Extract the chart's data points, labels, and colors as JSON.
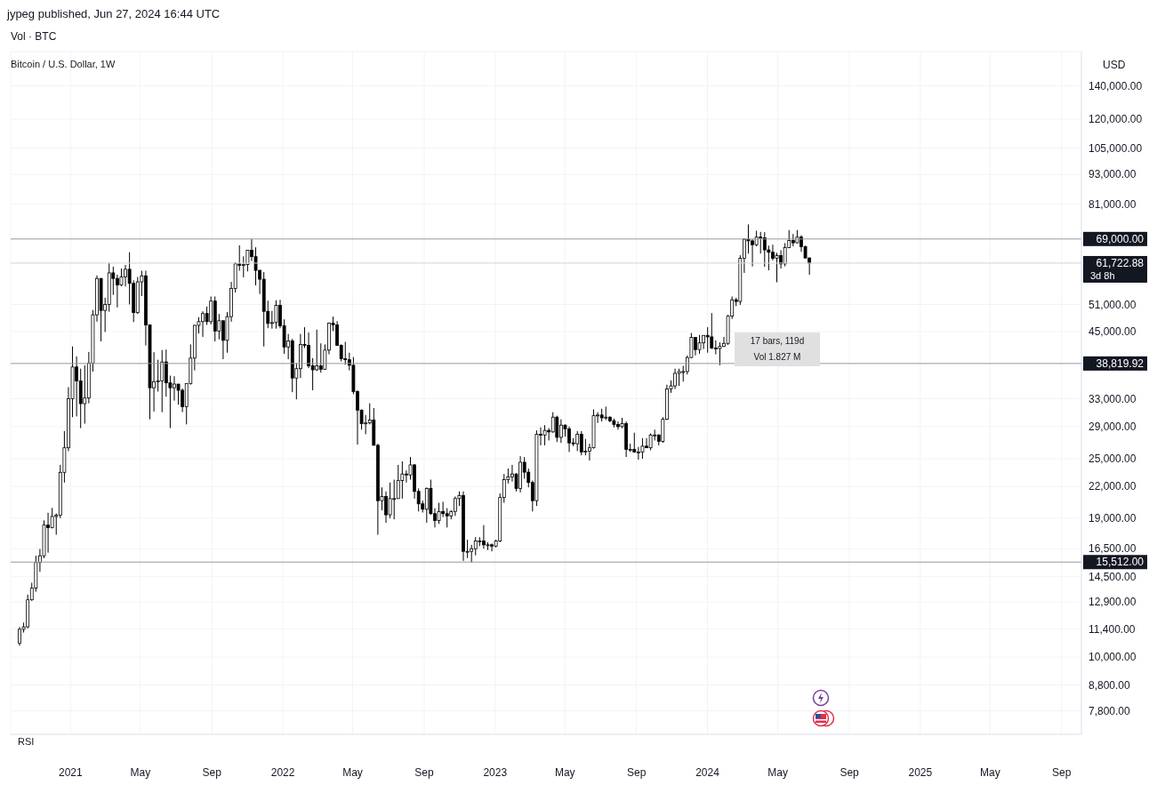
{
  "chart_data": {
    "type": "candlestick",
    "title": "Bitcoin / U.S. Dollar, 1W",
    "color": "#000000",
    "log": true,
    "grid": true,
    "annotations": [
      "jypeg published, Jun 27, 2024 16:44 UTC",
      "Vol · BTC",
      "USD",
      "RSI",
      "17 bars, 119d",
      "Vol 1.827 M",
      "3d 8h"
    ],
    "xlim": [
      "2020-09-20",
      "2025-10-05"
    ],
    "xticks": [
      {
        "value": "2021-01-01",
        "label": "2021"
      },
      {
        "value": "2021-05-01",
        "label": "May"
      },
      {
        "value": "2021-09-01",
        "label": "Sep"
      },
      {
        "value": "2022-01-01",
        "label": "2022"
      },
      {
        "value": "2022-05-01",
        "label": "May"
      },
      {
        "value": "2022-09-01",
        "label": "Sep"
      },
      {
        "value": "2023-01-01",
        "label": "2023"
      },
      {
        "value": "2023-05-01",
        "label": "May"
      },
      {
        "value": "2023-09-01",
        "label": "Sep"
      },
      {
        "value": "2024-01-01",
        "label": "2024"
      },
      {
        "value": "2024-05-01",
        "label": "May"
      },
      {
        "value": "2024-09-01",
        "label": "Sep"
      },
      {
        "value": "2025-01-01",
        "label": "2025"
      },
      {
        "value": "2025-05-01",
        "label": "May"
      },
      {
        "value": "2025-09-01",
        "label": "Sep"
      }
    ],
    "ylim": [
      7000,
      164000
    ],
    "yticks": [
      {
        "value": 7800,
        "label": "7,800.00"
      },
      {
        "value": 8800,
        "label": "8,800.00"
      },
      {
        "value": 10000,
        "label": "10,000.00"
      },
      {
        "value": 11400,
        "label": "11,400.00"
      },
      {
        "value": 12900,
        "label": "12,900.00"
      },
      {
        "value": 14500,
        "label": "14,500.00"
      },
      {
        "value": 16500,
        "label": "16,500.00"
      },
      {
        "value": 19000,
        "label": "19,000.00"
      },
      {
        "value": 22000,
        "label": "22,000.00"
      },
      {
        "value": 25000,
        "label": "25,000.00"
      },
      {
        "value": 29000,
        "label": "29,000.00"
      },
      {
        "value": 33000,
        "label": "33,000.00"
      },
      {
        "value": 45000,
        "label": "45,000.00"
      },
      {
        "value": 51000,
        "label": "51,000.00"
      },
      {
        "value": 81000,
        "label": "81,000.00"
      },
      {
        "value": 93000,
        "label": "93,000.00"
      },
      {
        "value": 105000,
        "label": "105,000.00"
      },
      {
        "value": 120000,
        "label": "120,000.00"
      },
      {
        "value": 140000,
        "label": "140,000.00"
      }
    ],
    "ref_lines": [
      {
        "axis": "y",
        "value": 69000,
        "label": "69,000.00",
        "color": "#9598a1"
      },
      {
        "axis": "y",
        "value": 61722.88,
        "label": "61,722.88",
        "color": "#d1d4dc"
      },
      {
        "axis": "y",
        "value": 38819.92,
        "label": "38,819.92",
        "color": "#9598a1"
      },
      {
        "axis": "y",
        "value": 15512,
        "label": "15,512.00",
        "color": "#9598a1"
      }
    ],
    "x": [
      "2020-10-05",
      "2020-10-12",
      "2020-10-19",
      "2020-10-26",
      "2020-11-02",
      "2020-11-09",
      "2020-11-16",
      "2020-11-23",
      "2020-11-30",
      "2020-12-07",
      "2020-12-14",
      "2020-12-21",
      "2020-12-28",
      "2021-01-04",
      "2021-01-11",
      "2021-01-18",
      "2021-01-25",
      "2021-02-01",
      "2021-02-08",
      "2021-02-15",
      "2021-02-22",
      "2021-03-01",
      "2021-03-08",
      "2021-03-15",
      "2021-03-22",
      "2021-03-29",
      "2021-04-05",
      "2021-04-12",
      "2021-04-19",
      "2021-04-26",
      "2021-05-03",
      "2021-05-10",
      "2021-05-17",
      "2021-05-24",
      "2021-05-31",
      "2021-06-07",
      "2021-06-14",
      "2021-06-21",
      "2021-06-28",
      "2021-07-05",
      "2021-07-12",
      "2021-07-19",
      "2021-07-26",
      "2021-08-02",
      "2021-08-09",
      "2021-08-16",
      "2021-08-23",
      "2021-08-30",
      "2021-09-06",
      "2021-09-13",
      "2021-09-20",
      "2021-09-27",
      "2021-10-04",
      "2021-10-11",
      "2021-10-18",
      "2021-10-25",
      "2021-11-01",
      "2021-11-08",
      "2021-11-15",
      "2021-11-22",
      "2021-11-29",
      "2021-12-06",
      "2021-12-13",
      "2021-12-20",
      "2021-12-27",
      "2022-01-03",
      "2022-01-10",
      "2022-01-17",
      "2022-01-24",
      "2022-01-31",
      "2022-02-07",
      "2022-02-14",
      "2022-02-21",
      "2022-02-28",
      "2022-03-07",
      "2022-03-14",
      "2022-03-21",
      "2022-03-28",
      "2022-04-04",
      "2022-04-11",
      "2022-04-18",
      "2022-04-25",
      "2022-05-02",
      "2022-05-09",
      "2022-05-16",
      "2022-05-23",
      "2022-05-30",
      "2022-06-06",
      "2022-06-13",
      "2022-06-20",
      "2022-06-27",
      "2022-07-04",
      "2022-07-11",
      "2022-07-18",
      "2022-07-25",
      "2022-08-01",
      "2022-08-08",
      "2022-08-15",
      "2022-08-22",
      "2022-08-29",
      "2022-09-05",
      "2022-09-12",
      "2022-09-19",
      "2022-09-26",
      "2022-10-03",
      "2022-10-10",
      "2022-10-17",
      "2022-10-24",
      "2022-10-31",
      "2022-11-07",
      "2022-11-14",
      "2022-11-21",
      "2022-11-28",
      "2022-12-05",
      "2022-12-12",
      "2022-12-19",
      "2022-12-26",
      "2023-01-02",
      "2023-01-09",
      "2023-01-16",
      "2023-01-23",
      "2023-01-30",
      "2023-02-06",
      "2023-02-13",
      "2023-02-20",
      "2023-02-27",
      "2023-03-06",
      "2023-03-13",
      "2023-03-20",
      "2023-03-27",
      "2023-04-03",
      "2023-04-10",
      "2023-04-17",
      "2023-04-24",
      "2023-05-01",
      "2023-05-08",
      "2023-05-15",
      "2023-05-22",
      "2023-05-29",
      "2023-06-05",
      "2023-06-12",
      "2023-06-19",
      "2023-06-26",
      "2023-07-03",
      "2023-07-10",
      "2023-07-17",
      "2023-07-24",
      "2023-07-31",
      "2023-08-07",
      "2023-08-14",
      "2023-08-21",
      "2023-08-28",
      "2023-09-04",
      "2023-09-11",
      "2023-09-18",
      "2023-09-25",
      "2023-10-02",
      "2023-10-09",
      "2023-10-16",
      "2023-10-23",
      "2023-10-30",
      "2023-11-06",
      "2023-11-13",
      "2023-11-20",
      "2023-11-27",
      "2023-12-04",
      "2023-12-11",
      "2023-12-18",
      "2023-12-25",
      "2024-01-01",
      "2024-01-08",
      "2024-01-15",
      "2024-01-22",
      "2024-01-29",
      "2024-02-05",
      "2024-02-12",
      "2024-02-19",
      "2024-02-26",
      "2024-03-04",
      "2024-03-11",
      "2024-03-18",
      "2024-03-25",
      "2024-04-01",
      "2024-04-08",
      "2024-04-15",
      "2024-04-22",
      "2024-04-29",
      "2024-05-06",
      "2024-05-13",
      "2024-05-20",
      "2024-05-27",
      "2024-06-03",
      "2024-06-10",
      "2024-06-17",
      "2024-06-24"
    ],
    "ohlc": [
      [
        10670,
        11490,
        10540,
        11370
      ],
      [
        11370,
        11730,
        11200,
        11500
      ],
      [
        11500,
        13350,
        11420,
        13030
      ],
      [
        13030,
        14100,
        12970,
        13750
      ],
      [
        13750,
        15970,
        13530,
        15480
      ],
      [
        15480,
        16480,
        14830,
        15970
      ],
      [
        15970,
        18800,
        15800,
        18400
      ],
      [
        18400,
        19480,
        16200,
        18190
      ],
      [
        18190,
        19920,
        18120,
        19150
      ],
      [
        19150,
        19420,
        17600,
        19270
      ],
      [
        19270,
        24300,
        19000,
        23480
      ],
      [
        23480,
        28400,
        22400,
        26300
      ],
      [
        26300,
        34800,
        25900,
        33000
      ],
      [
        33000,
        42000,
        30300,
        38200
      ],
      [
        38200,
        40100,
        30400,
        35800
      ],
      [
        35800,
        37900,
        28800,
        32250
      ],
      [
        32250,
        38500,
        29400,
        33100
      ],
      [
        33100,
        40950,
        32300,
        38900
      ],
      [
        38900,
        49700,
        37400,
        48600
      ],
      [
        48600,
        58300,
        47100,
        57500
      ],
      [
        57500,
        57600,
        43000,
        49600
      ],
      [
        49600,
        52600,
        44900,
        51000
      ],
      [
        51000,
        61800,
        49300,
        59000
      ],
      [
        59000,
        60700,
        53300,
        57500
      ],
      [
        57500,
        58500,
        50300,
        55800
      ],
      [
        55800,
        60200,
        55500,
        57900
      ],
      [
        57900,
        61200,
        55400,
        60000
      ],
      [
        60000,
        64900,
        51000,
        56200
      ],
      [
        56200,
        57000,
        47000,
        49100
      ],
      [
        49100,
        57900,
        48800,
        56600
      ],
      [
        56600,
        59600,
        53000,
        58200
      ],
      [
        58200,
        59600,
        42200,
        46400
      ],
      [
        46400,
        46500,
        30000,
        34700
      ],
      [
        34700,
        40900,
        31100,
        35700
      ],
      [
        35700,
        39500,
        34100,
        35800
      ],
      [
        35800,
        41300,
        31000,
        39100
      ],
      [
        39100,
        41400,
        33300,
        35500
      ],
      [
        35500,
        36700,
        28800,
        34700
      ],
      [
        34700,
        36600,
        32700,
        35300
      ],
      [
        35300,
        35300,
        32100,
        34300
      ],
      [
        34300,
        34600,
        31000,
        31800
      ],
      [
        31800,
        35400,
        29300,
        35400
      ],
      [
        35400,
        42400,
        35200,
        39800
      ],
      [
        39800,
        46400,
        37600,
        46300
      ],
      [
        46300,
        48100,
        44600,
        47100
      ],
      [
        47100,
        49400,
        43900,
        48900
      ],
      [
        48900,
        50500,
        46400,
        47100
      ],
      [
        47100,
        52900,
        46500,
        51800
      ],
      [
        51800,
        52900,
        43000,
        45100
      ],
      [
        45100,
        48800,
        43400,
        47300
      ],
      [
        47300,
        47300,
        39600,
        43200
      ],
      [
        43200,
        49200,
        40800,
        48200
      ],
      [
        48200,
        56600,
        47100,
        54900
      ],
      [
        54900,
        62000,
        53900,
        61500
      ],
      [
        61500,
        67000,
        59600,
        61100
      ],
      [
        61100,
        63700,
        57800,
        61300
      ],
      [
        61300,
        65600,
        59400,
        65500
      ],
      [
        65500,
        69000,
        62300,
        63600
      ],
      [
        63600,
        66400,
        55700,
        59700
      ],
      [
        59700,
        59800,
        53500,
        57300
      ],
      [
        57300,
        59200,
        42000,
        49400
      ],
      [
        49400,
        51900,
        45700,
        46700
      ],
      [
        46700,
        49500,
        45600,
        46900
      ],
      [
        46900,
        52000,
        45600,
        50800
      ],
      [
        50800,
        52100,
        45700,
        46200
      ],
      [
        46200,
        47600,
        40600,
        41900
      ],
      [
        41900,
        44500,
        39600,
        43100
      ],
      [
        43100,
        43500,
        34000,
        36300
      ],
      [
        36300,
        38900,
        32900,
        37900
      ],
      [
        37900,
        44500,
        36300,
        42400
      ],
      [
        42400,
        45900,
        41700,
        42200
      ],
      [
        42200,
        44800,
        38000,
        38400
      ],
      [
        38400,
        39800,
        34300,
        37700
      ],
      [
        37700,
        45400,
        37500,
        38400
      ],
      [
        38400,
        42600,
        37200,
        37800
      ],
      [
        37800,
        42400,
        37700,
        41300
      ],
      [
        41300,
        46900,
        40500,
        46800
      ],
      [
        46800,
        48200,
        45100,
        46400
      ],
      [
        46400,
        47200,
        42100,
        42200
      ],
      [
        42200,
        42400,
        39200,
        39700
      ],
      [
        39700,
        42900,
        38600,
        39500
      ],
      [
        39500,
        40800,
        37600,
        38500
      ],
      [
        38500,
        40000,
        33700,
        34100
      ],
      [
        34100,
        34300,
        26700,
        31300
      ],
      [
        31300,
        31400,
        28600,
        29400
      ],
      [
        29400,
        30600,
        28000,
        29500
      ],
      [
        29500,
        32300,
        29300,
        29900
      ],
      [
        29900,
        31600,
        26600,
        26600
      ],
      [
        26600,
        26800,
        17600,
        20600
      ],
      [
        20600,
        21900,
        19700,
        21000
      ],
      [
        21000,
        21500,
        18600,
        19300
      ],
      [
        19300,
        22400,
        19000,
        20800
      ],
      [
        20800,
        22700,
        18900,
        20800
      ],
      [
        20800,
        24300,
        20800,
        22600
      ],
      [
        22600,
        24700,
        20800,
        23300
      ],
      [
        23300,
        23700,
        22400,
        23200
      ],
      [
        23200,
        25200,
        22700,
        24300
      ],
      [
        24300,
        24400,
        20800,
        21500
      ],
      [
        21500,
        21800,
        19600,
        20300
      ],
      [
        20300,
        20600,
        19500,
        19800
      ],
      [
        19800,
        21900,
        18600,
        21800
      ],
      [
        21800,
        22700,
        19300,
        19400
      ],
      [
        19400,
        19900,
        18200,
        18800
      ],
      [
        18800,
        20400,
        18500,
        19600
      ],
      [
        19600,
        20500,
        19100,
        19400
      ],
      [
        19400,
        19900,
        18200,
        19200
      ],
      [
        19200,
        19700,
        18900,
        19600
      ],
      [
        19600,
        21000,
        19200,
        20800
      ],
      [
        20800,
        21500,
        20100,
        21100
      ],
      [
        21100,
        21500,
        15600,
        16300
      ],
      [
        16300,
        17200,
        15800,
        16300
      ],
      [
        16300,
        16800,
        15500,
        16500
      ],
      [
        16500,
        17400,
        16000,
        17100
      ],
      [
        17100,
        17400,
        16700,
        17100
      ],
      [
        17100,
        18400,
        16500,
        16800
      ],
      [
        16800,
        17000,
        16400,
        16800
      ],
      [
        16800,
        16900,
        16300,
        16700
      ],
      [
        16700,
        17200,
        16600,
        17100
      ],
      [
        17100,
        21300,
        17000,
        20900
      ],
      [
        20900,
        23300,
        20400,
        22700
      ],
      [
        22700,
        23900,
        22300,
        23000
      ],
      [
        23000,
        24300,
        22500,
        23300
      ],
      [
        23300,
        23400,
        21500,
        21800
      ],
      [
        21800,
        25300,
        21400,
        24600
      ],
      [
        24600,
        25200,
        22800,
        23500
      ],
      [
        23500,
        23900,
        21900,
        22400
      ],
      [
        22400,
        22600,
        19600,
        20600
      ],
      [
        20600,
        28500,
        20100,
        28000
      ],
      [
        28000,
        28900,
        26600,
        27900
      ],
      [
        27900,
        29200,
        26600,
        28500
      ],
      [
        28500,
        28800,
        27200,
        28300
      ],
      [
        28300,
        31000,
        28200,
        30300
      ],
      [
        30300,
        30500,
        27000,
        27600
      ],
      [
        27600,
        30000,
        26900,
        29200
      ],
      [
        29200,
        29300,
        27700,
        28700
      ],
      [
        28700,
        29000,
        25800,
        26900
      ],
      [
        26900,
        27500,
        26500,
        26800
      ],
      [
        26800,
        28400,
        25900,
        28000
      ],
      [
        28000,
        28400,
        25400,
        25800
      ],
      [
        25800,
        27400,
        25400,
        25900
      ],
      [
        25900,
        26800,
        24800,
        26300
      ],
      [
        26300,
        31400,
        26200,
        30500
      ],
      [
        30500,
        31000,
        29500,
        30600
      ],
      [
        30600,
        31500,
        29700,
        30200
      ],
      [
        30200,
        31800,
        29900,
        30300
      ],
      [
        30300,
        30400,
        29600,
        29800
      ],
      [
        29800,
        30100,
        28900,
        29300
      ],
      [
        29300,
        29700,
        28600,
        29000
      ],
      [
        29000,
        30200,
        28800,
        29400
      ],
      [
        29400,
        29700,
        25200,
        26100
      ],
      [
        26100,
        26800,
        25800,
        26100
      ],
      [
        26100,
        28200,
        25700,
        25800
      ],
      [
        25800,
        26400,
        24900,
        25800
      ],
      [
        25800,
        27500,
        25000,
        26500
      ],
      [
        26500,
        27500,
        26300,
        26300
      ],
      [
        26300,
        28100,
        26000,
        27900
      ],
      [
        27900,
        28600,
        27200,
        27900
      ],
      [
        27900,
        28000,
        26600,
        27100
      ],
      [
        27100,
        30300,
        26900,
        30000
      ],
      [
        30000,
        35200,
        29900,
        34500
      ],
      [
        34500,
        35900,
        33900,
        35000
      ],
      [
        35000,
        37900,
        34500,
        37100
      ],
      [
        37100,
        37900,
        35000,
        37400
      ],
      [
        37400,
        38400,
        35700,
        37400
      ],
      [
        37400,
        40300,
        36900,
        39900
      ],
      [
        39900,
        44700,
        39800,
        43800
      ],
      [
        43800,
        43800,
        40300,
        41400
      ],
      [
        41400,
        44300,
        40600,
        42700
      ],
      [
        42700,
        44200,
        41500,
        44200
      ],
      [
        44200,
        45900,
        40800,
        43900
      ],
      [
        43900,
        49000,
        41500,
        41700
      ],
      [
        41700,
        43200,
        40500,
        41600
      ],
      [
        41600,
        42800,
        38500,
        42000
      ],
      [
        42000,
        43900,
        41900,
        42600
      ],
      [
        42600,
        48600,
        42300,
        48300
      ],
      [
        48300,
        52900,
        47700,
        52100
      ],
      [
        52100,
        52600,
        50600,
        51700
      ],
      [
        51700,
        64000,
        50900,
        63100
      ],
      [
        63100,
        69200,
        59000,
        68900
      ],
      [
        68900,
        73800,
        64500,
        68400
      ],
      [
        68400,
        68900,
        60800,
        67200
      ],
      [
        67200,
        71700,
        66700,
        69600
      ],
      [
        69600,
        71300,
        64500,
        69400
      ],
      [
        69400,
        71200,
        60700,
        65600
      ],
      [
        65600,
        66900,
        59700,
        64900
      ],
      [
        64900,
        67200,
        62500,
        63100
      ],
      [
        63100,
        64700,
        56500,
        63900
      ],
      [
        63900,
        65500,
        60200,
        61500
      ],
      [
        61500,
        67700,
        60800,
        66300
      ],
      [
        66300,
        71900,
        66100,
        68500
      ],
      [
        68500,
        70600,
        66700,
        67800
      ],
      [
        67800,
        71900,
        67600,
        69600
      ],
      [
        69600,
        70200,
        65000,
        66600
      ],
      [
        66600,
        66900,
        63100,
        63200
      ],
      [
        63200,
        63400,
        58500,
        61722.88
      ]
    ]
  }
}
